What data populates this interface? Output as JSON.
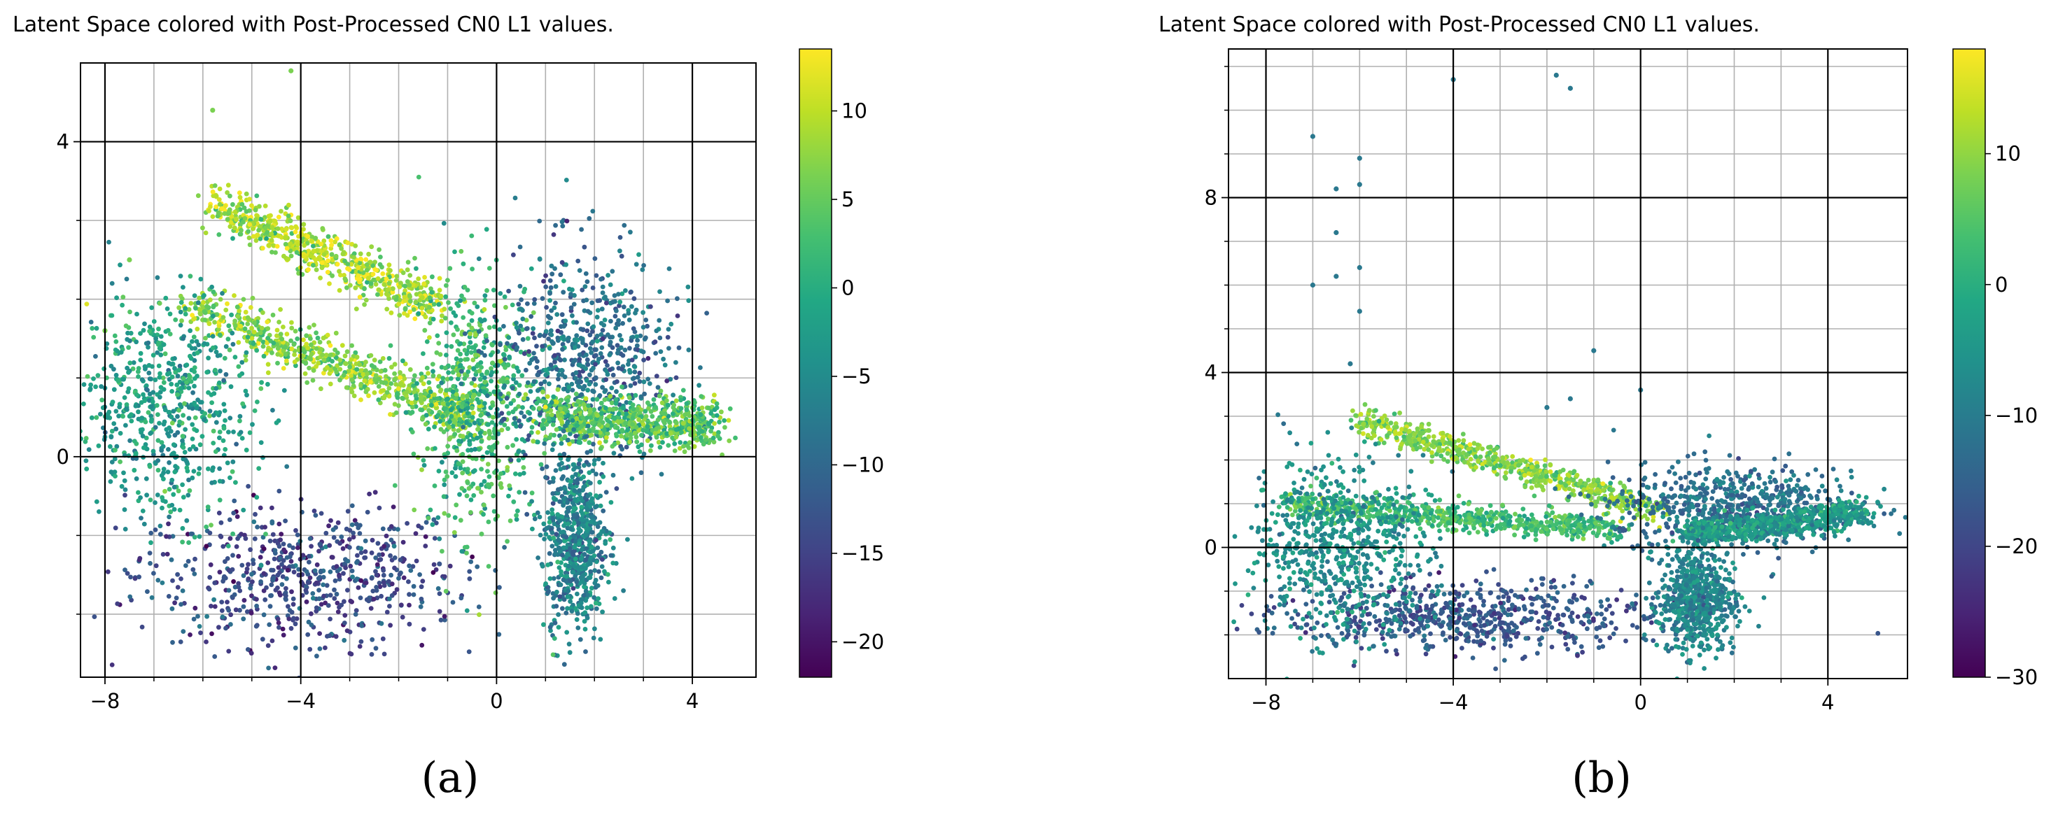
{
  "chart_data": [
    {
      "type": "scatter",
      "title": "Latent Space colored with Post-Processed CN0 L1 values.",
      "panel_label": "(a)",
      "xlabel": "",
      "ylabel": "",
      "xlim": [
        -8.5,
        5.3
      ],
      "ylim": [
        -2.8,
        5.0
      ],
      "major_x_ticks": [
        -8,
        -4,
        0,
        4
      ],
      "major_x_tick_labels": [
        "−8",
        "−4",
        "0",
        "4"
      ],
      "major_y_ticks": [
        0,
        4
      ],
      "major_y_tick_labels": [
        "0",
        "4"
      ],
      "minor_x_ticks": [
        -7,
        -6,
        -5,
        -3,
        -2,
        -1,
        1,
        2,
        3
      ],
      "minor_y_ticks": [
        -2,
        -1,
        1,
        2,
        3
      ],
      "grid": true,
      "colorbar": {
        "label": "",
        "colormap": "viridis",
        "range": [
          -22,
          13.5
        ],
        "ticks": [
          10,
          5,
          0,
          -5,
          -10,
          -15,
          -20
        ],
        "tick_labels": [
          "10",
          "5",
          "0",
          "−5",
          "−10",
          "−15",
          "−20"
        ]
      },
      "clusters": [
        {
          "name": "lower-left lobe",
          "center": [
            -4.0,
            -1.5
          ],
          "spread": [
            1.7,
            0.45
          ],
          "value": -14
        },
        {
          "name": "upper-left band",
          "from": [
            -5.8,
            3.2
          ],
          "to": [
            -1.2,
            1.9
          ],
          "value": 9
        },
        {
          "name": "middle-left band",
          "from": [
            -6.2,
            1.9
          ],
          "to": [
            -0.5,
            0.5
          ],
          "value": 7
        },
        {
          "name": "far-left scatter",
          "center": [
            -6.8,
            0.6
          ],
          "spread": [
            0.9,
            0.7
          ],
          "value": -2
        },
        {
          "name": "central hub",
          "center": [
            -0.4,
            0.7
          ],
          "spread": [
            0.6,
            0.8
          ],
          "value": 2
        },
        {
          "name": "upper-right lobe",
          "center": [
            1.8,
            1.2
          ],
          "spread": [
            0.9,
            0.7
          ],
          "value": -9
        },
        {
          "name": "right arm",
          "from": [
            1.0,
            0.5
          ],
          "to": [
            4.5,
            0.4
          ],
          "value": 4
        },
        {
          "name": "lower spike",
          "center": [
            1.6,
            -1.1
          ],
          "spread": [
            0.3,
            0.6
          ],
          "value": -6
        }
      ],
      "outliers": [
        [
          -4.2,
          4.9
        ],
        [
          -5.8,
          4.4
        ],
        [
          -7.5,
          2.5
        ],
        [
          -8.0,
          1.6
        ]
      ]
    },
    {
      "type": "scatter",
      "title": "Latent Space colored with Post-Processed CN0 L1 values.",
      "panel_label": "(b)",
      "xlabel": "",
      "ylabel": "",
      "xlim": [
        -8.8,
        5.7
      ],
      "ylim": [
        -3.0,
        11.4
      ],
      "major_x_ticks": [
        -8,
        -4,
        0,
        4
      ],
      "major_x_tick_labels": [
        "−8",
        "−4",
        "0",
        "4"
      ],
      "major_y_ticks": [
        0,
        4,
        8
      ],
      "major_y_tick_labels": [
        "0",
        "4",
        "8"
      ],
      "minor_x_ticks": [
        -7,
        -6,
        -5,
        -3,
        -2,
        -1,
        1,
        2,
        3
      ],
      "minor_y_ticks": [
        -2,
        -1,
        1,
        2,
        3,
        5,
        6,
        7,
        9,
        10,
        11
      ],
      "grid": true,
      "colorbar": {
        "label": "",
        "colormap": "viridis",
        "range": [
          -30,
          18
        ],
        "ticks": [
          10,
          0,
          -10,
          -20,
          -30
        ],
        "tick_labels": [
          "10",
          "0",
          "−10",
          "−20",
          "−30"
        ]
      },
      "clusters": [
        {
          "name": "lower lobe",
          "center": [
            -3.5,
            -1.6
          ],
          "spread": [
            2.0,
            0.4
          ],
          "value": -17
        },
        {
          "name": "main band",
          "from": [
            -6.0,
            2.9
          ],
          "to": [
            0.5,
            0.8
          ],
          "value": 9
        },
        {
          "name": "middle band",
          "from": [
            -7.5,
            1.0
          ],
          "to": [
            -0.5,
            0.4
          ],
          "value": 3
        },
        {
          "name": "left spread",
          "center": [
            -6.5,
            0.0
          ],
          "spread": [
            1.0,
            1.0
          ],
          "value": -6
        },
        {
          "name": "right lobe",
          "center": [
            2.0,
            0.9
          ],
          "spread": [
            1.3,
            0.5
          ],
          "value": -12
        },
        {
          "name": "right arm",
          "from": [
            1.0,
            0.3
          ],
          "to": [
            4.8,
            0.8
          ],
          "value": -4
        },
        {
          "name": "center spike",
          "center": [
            1.2,
            -1.2
          ],
          "spread": [
            0.4,
            0.6
          ],
          "value": -8
        }
      ],
      "outliers": [
        [
          -4.0,
          10.7
        ],
        [
          -1.8,
          10.8
        ],
        [
          -1.5,
          10.5
        ],
        [
          -7.0,
          9.4
        ],
        [
          -6.0,
          8.9
        ],
        [
          -6.5,
          8.2
        ],
        [
          -6.0,
          8.3
        ],
        [
          -6.5,
          7.2
        ],
        [
          -6.0,
          6.4
        ],
        [
          -7.0,
          6.0
        ],
        [
          -6.5,
          6.2
        ],
        [
          -6.0,
          5.4
        ],
        [
          -6.2,
          4.2
        ],
        [
          -1.0,
          4.5
        ],
        [
          -1.5,
          3.4
        ],
        [
          -2.0,
          3.2
        ],
        [
          0,
          3.6
        ]
      ]
    }
  ]
}
